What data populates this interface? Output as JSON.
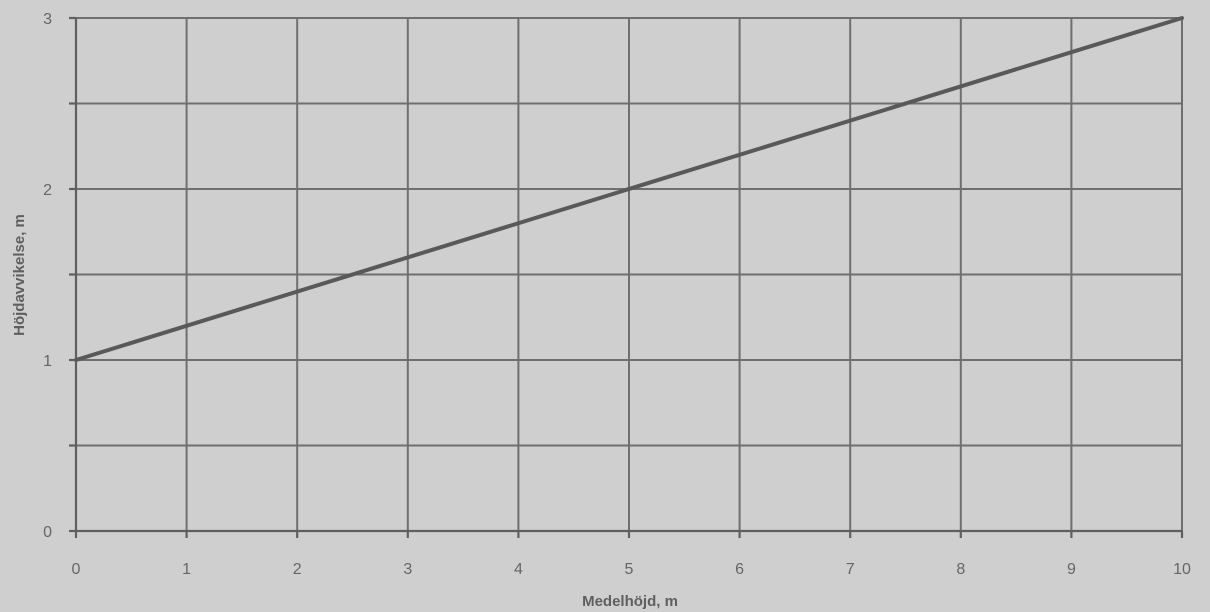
{
  "chart_data": {
    "type": "line",
    "xlabel": "Medelhöjd, m",
    "ylabel": "Höjdavvikelse, m",
    "xlim": [
      0,
      10
    ],
    "ylim": [
      0,
      3
    ],
    "x_ticks": [
      "0",
      "1",
      "2",
      "3",
      "4",
      "5",
      "6",
      "7",
      "8",
      "9",
      "10"
    ],
    "y_ticks": [
      "0",
      "1",
      "2",
      "3"
    ],
    "x_grid": [
      0,
      1,
      2,
      3,
      4,
      5,
      6,
      7,
      8,
      9,
      10
    ],
    "y_grid": [
      0,
      0.5,
      1,
      1.5,
      2,
      2.5,
      3
    ],
    "grid": true,
    "legend": "none",
    "series": [
      {
        "x": [
          0,
          10
        ],
        "y": [
          1,
          3
        ],
        "color": "#595959"
      }
    ],
    "background": "#cfcfcf",
    "grid_color": "#6f6f6f"
  }
}
